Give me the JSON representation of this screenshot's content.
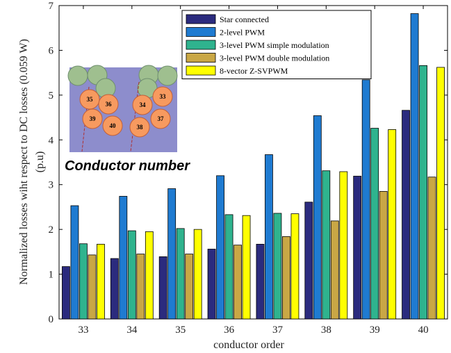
{
  "chart_data": {
    "type": "bar",
    "categories": [
      "33",
      "34",
      "35",
      "36",
      "37",
      "38",
      "39",
      "40"
    ],
    "xlabel": "conductor order",
    "ylabel_line1": "Normalized  losses wiht respect to DC losses (0.059 W)",
    "ylabel_line2": "(p.u)",
    "ylim": [
      0,
      7
    ],
    "yticks": [
      "0",
      "1",
      "2",
      "3",
      "4",
      "5",
      "6",
      "7"
    ],
    "legend_placement": "top-center",
    "series": [
      {
        "name": "Star connected",
        "color": "#2b2b7e",
        "values": [
          1.17,
          1.35,
          1.39,
          1.56,
          1.67,
          2.61,
          3.19,
          4.66
        ]
      },
      {
        "name": "2-level PWM",
        "color": "#1f7bd1",
        "values": [
          2.53,
          2.74,
          2.91,
          3.2,
          3.67,
          4.54,
          5.34,
          6.82
        ]
      },
      {
        "name": "3-level PWM simple modulation",
        "color": "#2fb38e",
        "values": [
          1.68,
          1.97,
          2.02,
          2.33,
          2.36,
          3.31,
          4.26,
          5.66
        ]
      },
      {
        "name": "3-level PWM double  modulation",
        "color": "#c9a745",
        "values": [
          1.43,
          1.45,
          1.45,
          1.65,
          1.84,
          2.19,
          2.85,
          3.17
        ]
      },
      {
        "name": "8-vector Z-SVPWM",
        "color": "#ffff00",
        "values": [
          1.67,
          1.95,
          2.0,
          2.31,
          2.35,
          3.29,
          4.23,
          5.62
        ]
      }
    ]
  },
  "inset": {
    "title": "Conductor number",
    "conductors": [
      "35",
      "36",
      "39",
      "40",
      "34",
      "33",
      "38",
      "37"
    ]
  }
}
